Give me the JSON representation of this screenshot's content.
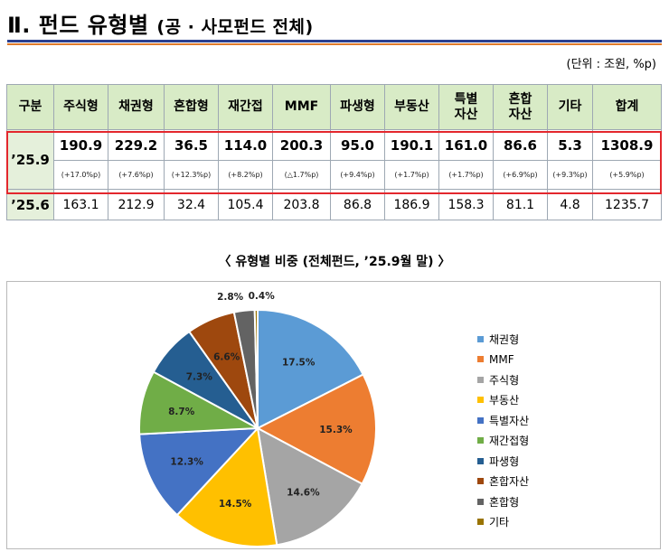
{
  "header": {
    "title_main": "Ⅱ. 펀드 유형별",
    "title_sub": "(공 · 사모펀드 전체)",
    "unit": "(단위 : 조원, %p)"
  },
  "table": {
    "columns": [
      "구분",
      "주식형",
      "채권형",
      "혼합형",
      "재간접",
      "MMF",
      "파생형",
      "부동산",
      "특별자산",
      "혼합자산",
      "기타",
      "합계"
    ],
    "row_2509": {
      "label": "’25.9",
      "values": [
        "190.9",
        "229.2",
        "36.5",
        "114.0",
        "200.3",
        "95.0",
        "190.1",
        "161.0",
        "86.6",
        "5.3",
        "1308.9"
      ],
      "changes": [
        "(+17.0%p)",
        "(+7.6%p)",
        "(+12.3%p)",
        "(+8.2%p)",
        "(△1.7%p)",
        "(+9.4%p)",
        "(+1.7%p)",
        "(+1.7%p)",
        "(+6.9%p)",
        "(+9.3%p)",
        "(+5.9%p)"
      ]
    },
    "row_2506": {
      "label": "’25.6",
      "values": [
        "163.1",
        "212.9",
        "32.4",
        "105.4",
        "203.8",
        "86.8",
        "186.9",
        "158.3",
        "81.1",
        "4.8",
        "1235.7"
      ]
    }
  },
  "chart_title": "〈 유형별 비중 (전체펀드, ’25.9월 말) 〉",
  "chart_data": {
    "type": "pie",
    "title": "유형별 비중 (전체펀드, ’25.9월 말)",
    "legend_position": "right",
    "slices": [
      {
        "name": "채권형",
        "value": 17.5,
        "label": "17.5%",
        "color": "#5b9bd5"
      },
      {
        "name": "MMF",
        "value": 15.3,
        "label": "15.3%",
        "color": "#ed7d31"
      },
      {
        "name": "주식형",
        "value": 14.6,
        "label": "14.6%",
        "color": "#a5a5a5"
      },
      {
        "name": "부동산",
        "value": 14.5,
        "label": "14.5%",
        "color": "#ffc000"
      },
      {
        "name": "특별자산",
        "value": 12.3,
        "label": "12.3%",
        "color": "#4472c4"
      },
      {
        "name": "재간접형",
        "value": 8.7,
        "label": "8.7%",
        "color": "#70ad47"
      },
      {
        "name": "파생형",
        "value": 7.3,
        "label": "7.3%",
        "color": "#255e91"
      },
      {
        "name": "혼합자산",
        "value": 6.6,
        "label": "6.6%",
        "color": "#9e480e"
      },
      {
        "name": "혼합형",
        "value": 2.8,
        "label": "2.8%",
        "color": "#636363"
      },
      {
        "name": "기타",
        "value": 0.4,
        "label": "0.4%",
        "color": "#997300"
      }
    ]
  }
}
